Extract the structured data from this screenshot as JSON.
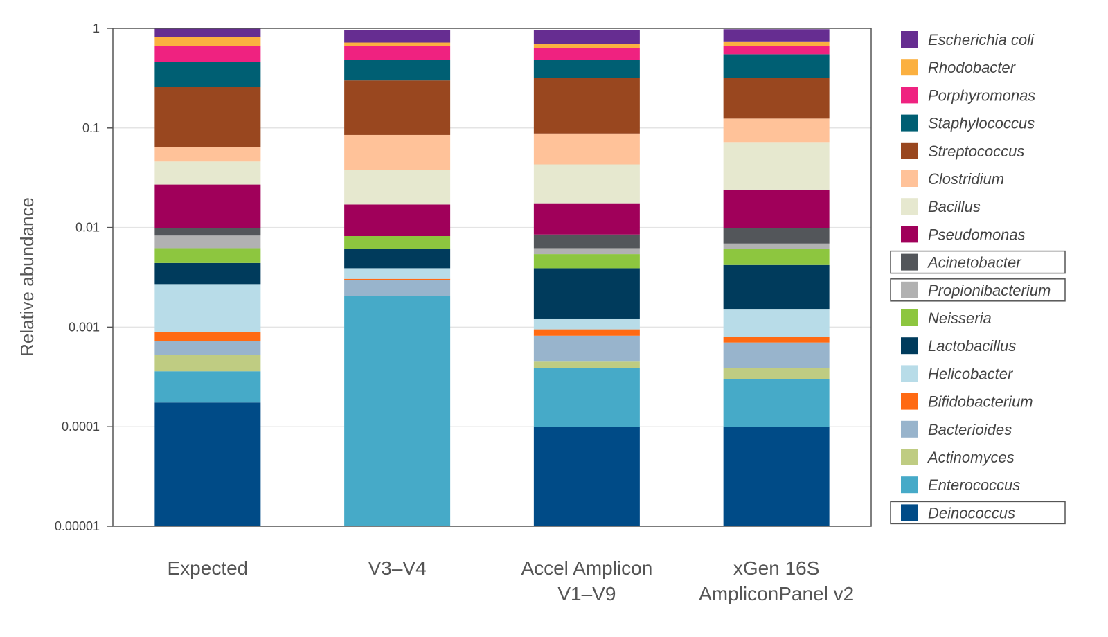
{
  "chart_data": {
    "type": "bar",
    "stacked": true,
    "yscale": "log",
    "ylabel": "Relative abundance",
    "ylim": [
      1e-05,
      1
    ],
    "yticks": [
      {
        "value": 1,
        "label": "1"
      },
      {
        "value": 0.1,
        "label": "0.1"
      },
      {
        "value": 0.01,
        "label": "0.01"
      },
      {
        "value": 0.001,
        "label": "0.001"
      },
      {
        "value": 0.0001,
        "label": "0.0001"
      },
      {
        "value": 1e-05,
        "label": "0.00001"
      }
    ],
    "grid": true,
    "legend_position": "right",
    "categories": [
      {
        "lines": [
          "Expected"
        ]
      },
      {
        "lines": [
          "V3–V4"
        ]
      },
      {
        "lines": [
          "Accel Amplicon",
          "V1–V9"
        ]
      },
      {
        "lines": [
          "xGen 16S",
          "AmpliconPanel v2"
        ]
      }
    ],
    "series": [
      {
        "name": "Deinococcus",
        "color": "#004b87",
        "boxed": true,
        "tops": [
          0.000175,
          null,
          0.0001,
          0.0001
        ]
      },
      {
        "name": "Enterococcus",
        "color": "#46aac8",
        "boxed": false,
        "tops": [
          0.00036,
          0.00205,
          0.00039,
          0.0003
        ]
      },
      {
        "name": "Actinomyces",
        "color": "#bfcc82",
        "boxed": false,
        "tops": [
          0.00053,
          null,
          0.00045,
          0.00039
        ]
      },
      {
        "name": "Bacterioides",
        "color": "#98b4cc",
        "boxed": false,
        "tops": [
          0.00072,
          0.00295,
          0.00082,
          0.0007
        ]
      },
      {
        "name": "Bifidobacterium",
        "color": "#ff6a13",
        "boxed": false,
        "tops": [
          0.0009,
          0.00305,
          0.00095,
          0.0008
        ]
      },
      {
        "name": "Helicobacter",
        "color": "#b8dce8",
        "boxed": false,
        "tops": [
          0.0027,
          0.0039,
          0.00122,
          0.0015
        ]
      },
      {
        "name": "Lactobacillus",
        "color": "#003b5c",
        "boxed": false,
        "tops": [
          0.0044,
          0.0061,
          0.0039,
          0.0042
        ]
      },
      {
        "name": "Neisseria",
        "color": "#8dc63f",
        "boxed": false,
        "tops": [
          0.0062,
          0.0082,
          0.0054,
          0.0061
        ]
      },
      {
        "name": "Propionibacterium",
        "color": "#b1b1b1",
        "boxed": true,
        "tops": [
          0.0083,
          null,
          0.0062,
          0.0069
        ]
      },
      {
        "name": "Acinetobacter",
        "color": "#53565a",
        "boxed": true,
        "tops": [
          0.0099,
          null,
          0.0085,
          0.0099
        ]
      },
      {
        "name": "Pseudomonas",
        "color": "#a0005a",
        "boxed": false,
        "tops": [
          0.027,
          0.017,
          0.0175,
          0.024
        ]
      },
      {
        "name": "Bacillus",
        "color": "#e6e8cf",
        "boxed": false,
        "tops": [
          0.046,
          0.038,
          0.043,
          0.072
        ]
      },
      {
        "name": "Clostridium",
        "color": "#ffc299",
        "boxed": false,
        "tops": [
          0.064,
          0.085,
          0.088,
          0.124
        ]
      },
      {
        "name": "Streptococcus",
        "color": "#99471f",
        "boxed": false,
        "tops": [
          0.26,
          0.3,
          0.32,
          0.32
        ]
      },
      {
        "name": "Staphylococcus",
        "color": "#005f73",
        "boxed": false,
        "tops": [
          0.46,
          0.48,
          0.48,
          0.55
        ]
      },
      {
        "name": "Porphyromonas",
        "color": "#ef2280",
        "boxed": false,
        "tops": [
          0.66,
          0.67,
          0.63,
          0.66
        ]
      },
      {
        "name": "Rhodobacter",
        "color": "#fbb040",
        "boxed": false,
        "tops": [
          0.82,
          0.72,
          0.7,
          0.74
        ]
      },
      {
        "name": "Escherichia coli",
        "color": "#662d91",
        "boxed": false,
        "tops": [
          1.0,
          0.96,
          0.96,
          0.98
        ]
      }
    ]
  }
}
